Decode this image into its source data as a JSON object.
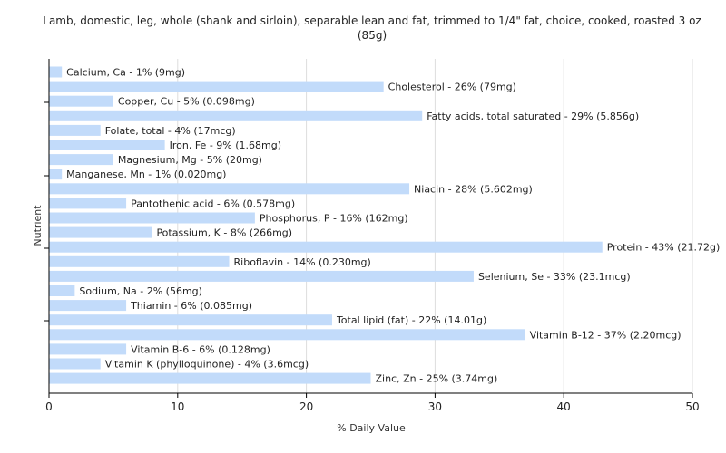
{
  "chart_data": {
    "type": "bar",
    "orientation": "horizontal",
    "title": "Lamb, domestic, leg, whole (shank and sirloin), separable lean and fat, trimmed to 1/4\" fat, choice, cooked, roasted 3 oz (85g)",
    "xlabel": "% Daily Value",
    "ylabel": "Nutrient",
    "xlim": [
      0,
      50
    ],
    "xticks": [
      "0",
      "10",
      "20",
      "30",
      "40",
      "50"
    ],
    "grid": true,
    "bar_color": "#c2dbfa",
    "categories": [
      "Calcium, Ca",
      "Cholesterol",
      "Copper, Cu",
      "Fatty acids, total saturated",
      "Folate, total",
      "Iron, Fe",
      "Magnesium, Mg",
      "Manganese, Mn",
      "Niacin",
      "Pantothenic acid",
      "Phosphorus, P",
      "Potassium, K",
      "Protein",
      "Riboflavin",
      "Selenium, Se",
      "Sodium, Na",
      "Thiamin",
      "Total lipid (fat)",
      "Vitamin B-12",
      "Vitamin B-6",
      "Vitamin K (phylloquinone)",
      "Zinc, Zn"
    ],
    "values": [
      1,
      26,
      5,
      29,
      4,
      9,
      5,
      1,
      28,
      6,
      16,
      8,
      43,
      14,
      33,
      2,
      6,
      22,
      37,
      6,
      4,
      25
    ],
    "labels": [
      "Calcium, Ca - 1% (9mg)",
      "Cholesterol - 26% (79mg)",
      "Copper, Cu - 5% (0.098mg)",
      "Fatty acids, total saturated - 29% (5.856g)",
      "Folate, total - 4% (17mcg)",
      "Iron, Fe - 9% (1.68mg)",
      "Magnesium, Mg - 5% (20mg)",
      "Manganese, Mn - 1% (0.020mg)",
      "Niacin - 28% (5.602mg)",
      "Pantothenic acid - 6% (0.578mg)",
      "Phosphorus, P - 16% (162mg)",
      "Potassium, K - 8% (266mg)",
      "Protein - 43% (21.72g)",
      "Riboflavin - 14% (0.230mg)",
      "Selenium, Se - 33% (23.1mcg)",
      "Sodium, Na - 2% (56mg)",
      "Thiamin - 6% (0.085mg)",
      "Total lipid (fat) - 22% (14.01g)",
      "Vitamin B-12 - 37% (2.20mcg)",
      "Vitamin B-6 - 6% (0.128mg)",
      "Vitamin K (phylloquinone) - 4% (3.6mcg)",
      "Zinc, Zn - 25% (3.74mg)"
    ]
  }
}
